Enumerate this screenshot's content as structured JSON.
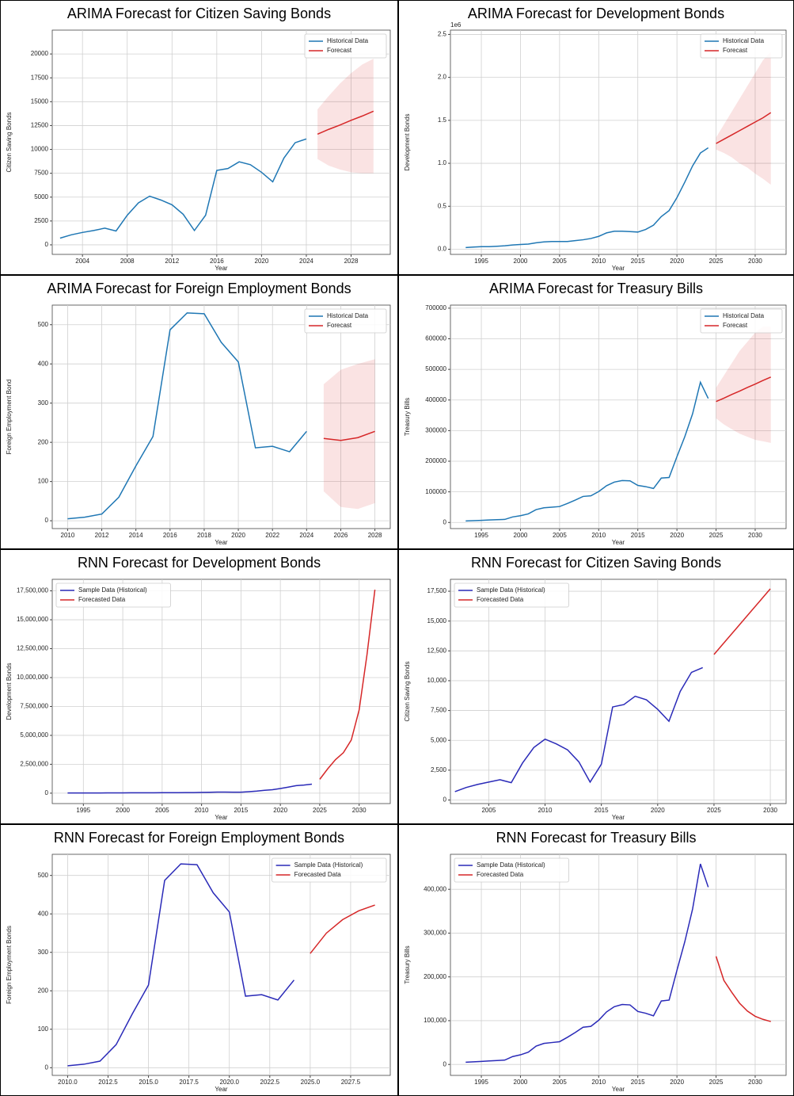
{
  "chart_data": [
    {
      "type": "line",
      "title": "ARIMA Forecast for Citizen Saving Bonds",
      "xlabel": "Year",
      "ylabel": "Citizen Saving Bonds",
      "xlim": [
        2001.3,
        2031.5
      ],
      "ylim": [
        -1000,
        22500
      ],
      "xticks": [
        2004,
        2008,
        2012,
        2016,
        2020,
        2024,
        2028
      ],
      "yticks": [
        0,
        2500,
        5000,
        7500,
        10000,
        12500,
        15000,
        17500,
        20000
      ],
      "grid": true,
      "legend": "upper right",
      "series": [
        {
          "name": "Historical Data",
          "color": "#1f77b4",
          "x": [
            2002,
            2003,
            2004,
            2005,
            2006,
            2007,
            2008,
            2009,
            2010,
            2011,
            2012,
            2013,
            2014,
            2015,
            2016,
            2017,
            2018,
            2019,
            2020,
            2021,
            2022,
            2023,
            2024
          ],
          "values": [
            700,
            1050,
            1300,
            1500,
            1750,
            1450,
            3100,
            4400,
            5100,
            4700,
            4200,
            3200,
            1500,
            3100,
            7800,
            8000,
            8700,
            8400,
            7600,
            6600,
            9100,
            10700,
            11100
          ]
        },
        {
          "name": "Forecast",
          "color": "#d62728",
          "x": [
            2025,
            2026,
            2027,
            2028,
            2029,
            2030
          ],
          "values": [
            11600,
            12100,
            12550,
            13050,
            13500,
            14000
          ],
          "ci_upper": [
            14200,
            15600,
            16900,
            18000,
            18900,
            19500
          ],
          "ci_lower": [
            9000,
            8300,
            7900,
            7600,
            7500,
            7500
          ]
        }
      ]
    },
    {
      "type": "line",
      "title": "ARIMA Forecast for Development Bonds",
      "xlabel": "Year",
      "ylabel": "Development Bonds",
      "y_offset_label": "1e6",
      "xlim": [
        1991.05,
        2033.95
      ],
      "ylim": [
        -0.06,
        2.55
      ],
      "xticks": [
        1995,
        2000,
        2005,
        2010,
        2015,
        2020,
        2025,
        2030
      ],
      "yticks": [
        {
          "value": 0,
          "label": "0.0"
        },
        0.5,
        {
          "value": 1,
          "label": "1.0"
        },
        1.5,
        {
          "value": 2,
          "label": "2.0"
        },
        2.5
      ],
      "grid": true,
      "legend": "upper right",
      "series": [
        {
          "name": "Historical Data",
          "color": "#1f77b4",
          "x": [
            1993,
            1994,
            1995,
            1996,
            1997,
            1998,
            1999,
            2000,
            2001,
            2002,
            2003,
            2004,
            2005,
            2006,
            2007,
            2008,
            2009,
            2010,
            2011,
            2012,
            2013,
            2014,
            2015,
            2016,
            2017,
            2018,
            2019,
            2020,
            2021,
            2022,
            2023,
            2024
          ],
          "values": [
            0.02,
            0.025,
            0.03,
            0.03,
            0.035,
            0.04,
            0.05,
            0.055,
            0.06,
            0.075,
            0.085,
            0.09,
            0.09,
            0.09,
            0.1,
            0.11,
            0.125,
            0.15,
            0.19,
            0.21,
            0.21,
            0.205,
            0.2,
            0.23,
            0.28,
            0.38,
            0.45,
            0.6,
            0.78,
            0.97,
            1.12,
            1.18
          ]
        },
        {
          "name": "Forecast",
          "color": "#d62728",
          "x": [
            2025,
            2026,
            2027,
            2028,
            2029,
            2030,
            2031,
            2032
          ],
          "values": [
            1.23,
            1.28,
            1.33,
            1.38,
            1.43,
            1.48,
            1.53,
            1.59
          ],
          "ci_upper": [
            1.3,
            1.45,
            1.6,
            1.75,
            1.9,
            2.05,
            2.2,
            2.3
          ],
          "ci_lower": [
            1.16,
            1.12,
            1.07,
            1.0,
            0.95,
            0.88,
            0.82,
            0.75
          ]
        }
      ]
    },
    {
      "type": "line",
      "title": "ARIMA Forecast for Foreign Employment Bonds",
      "xlabel": "Year",
      "ylabel": "Foreign Employment Bond",
      "xlim": [
        2009.1,
        2028.9
      ],
      "ylim": [
        -20,
        550
      ],
      "xticks": [
        2010,
        2012,
        2014,
        2016,
        2018,
        2020,
        2022,
        2024,
        2026,
        2028
      ],
      "yticks": [
        0,
        100,
        200,
        300,
        400,
        500
      ],
      "grid": true,
      "legend": "upper right",
      "series": [
        {
          "name": "Historical Data",
          "color": "#1f77b4",
          "x": [
            2010,
            2011,
            2012,
            2013,
            2014,
            2015,
            2016,
            2017,
            2018,
            2019,
            2020,
            2021,
            2022,
            2023,
            2024
          ],
          "values": [
            5,
            9,
            17,
            60,
            140,
            215,
            487,
            530,
            528,
            455,
            405,
            186,
            190,
            176,
            228
          ]
        },
        {
          "name": "Forecast",
          "color": "#d62728",
          "x": [
            2025,
            2026,
            2027,
            2028
          ],
          "values": [
            210,
            205,
            212,
            228
          ],
          "ci_upper": [
            348,
            385,
            400,
            412
          ],
          "ci_lower": [
            75,
            35,
            30,
            45
          ]
        }
      ]
    },
    {
      "type": "line",
      "title": "ARIMA Forecast for Treasury Bills",
      "xlabel": "Year",
      "ylabel": "Treasury Bills",
      "xlim": [
        1991.05,
        2033.95
      ],
      "ylim": [
        -20000,
        710000
      ],
      "xticks": [
        1995,
        2000,
        2005,
        2010,
        2015,
        2020,
        2025,
        2030
      ],
      "yticks": [
        0,
        100000,
        200000,
        300000,
        400000,
        500000,
        600000,
        700000
      ],
      "grid": true,
      "legend": "upper right",
      "series": [
        {
          "name": "Historical Data",
          "color": "#1f77b4",
          "x": [
            1993,
            1994,
            1995,
            1996,
            1997,
            1998,
            1999,
            2000,
            2001,
            2002,
            2003,
            2004,
            2005,
            2006,
            2007,
            2008,
            2009,
            2010,
            2011,
            2012,
            2013,
            2014,
            2015,
            2016,
            2017,
            2018,
            2019,
            2020,
            2021,
            2022,
            2023,
            2024
          ],
          "values": [
            5000,
            6000,
            7000,
            8000,
            9000,
            10000,
            18000,
            22000,
            28000,
            42000,
            48000,
            50000,
            52000,
            62000,
            73000,
            85000,
            87000,
            101000,
            120000,
            132000,
            137000,
            136000,
            121000,
            117000,
            111000,
            145000,
            147000,
            215000,
            280000,
            355000,
            458000,
            405000
          ]
        },
        {
          "name": "Forecast",
          "color": "#d62728",
          "x": [
            2025,
            2026,
            2027,
            2028,
            2029,
            2030,
            2031,
            2032
          ],
          "values": [
            395000,
            406000,
            418000,
            429000,
            441000,
            452000,
            464000,
            475000
          ],
          "ci_upper": [
            440000,
            480000,
            520000,
            560000,
            590000,
            620000,
            640000,
            640000
          ],
          "ci_lower": [
            340000,
            320000,
            305000,
            290000,
            280000,
            270000,
            265000,
            260000
          ]
        }
      ]
    },
    {
      "type": "line",
      "title": "RNN Forecast for Development Bonds",
      "xlabel": "Year",
      "ylabel": "Development Bonds",
      "xlim": [
        1991.05,
        2033.95
      ],
      "ylim": [
        -900000,
        18500000
      ],
      "xticks": [
        1995,
        2000,
        2005,
        2010,
        2015,
        2020,
        2025,
        2030
      ],
      "yticks": [
        0,
        {
          "value": 2500000,
          "label": "2,500,000"
        },
        {
          "value": 5000000,
          "label": "5,000,000"
        },
        {
          "value": 7500000,
          "label": "7,500,000"
        },
        {
          "value": 10000000,
          "label": "10,000,000"
        },
        {
          "value": 12500000,
          "label": "12,500,000"
        },
        {
          "value": 15000000,
          "label": "15,000,000"
        },
        {
          "value": 17500000,
          "label": "17,500,000"
        }
      ],
      "grid": true,
      "legend": "upper left",
      "series": [
        {
          "name": "Sample Data (Historical)",
          "color": "#2a2ab8",
          "x": [
            1993,
            1994,
            1995,
            1996,
            1997,
            1998,
            1999,
            2000,
            2001,
            2002,
            2003,
            2004,
            2005,
            2006,
            2007,
            2008,
            2009,
            2010,
            2011,
            2012,
            2013,
            2014,
            2015,
            2016,
            2017,
            2018,
            2019,
            2020,
            2021,
            2022,
            2023,
            2024
          ],
          "values": [
            15000,
            16000,
            18000,
            19000,
            20000,
            22000,
            25000,
            28000,
            30000,
            33000,
            36000,
            38000,
            40000,
            42000,
            45000,
            50000,
            55000,
            65000,
            80000,
            90000,
            90000,
            88000,
            85000,
            130000,
            180000,
            250000,
            300000,
            400000,
            520000,
            650000,
            700000,
            780000
          ]
        },
        {
          "name": "Forecasted Data",
          "color": "#d62728",
          "x": [
            2025,
            2026,
            2027,
            2028,
            2029,
            2030,
            2031,
            2032
          ],
          "values": [
            1200000,
            2100000,
            2900000,
            3500000,
            4600000,
            7200000,
            12000000,
            17600000
          ]
        }
      ]
    },
    {
      "type": "line",
      "title": "RNN Forecast for Citizen Saving Bonds",
      "xlabel": "Year",
      "ylabel": "Citizen Saving Bonds",
      "xlim": [
        2001.6,
        2031.4
      ],
      "ylim": [
        -300,
        18500
      ],
      "xticks": [
        2005,
        2010,
        2015,
        2020,
        2025,
        2030
      ],
      "yticks": [
        0,
        {
          "value": 2500,
          "label": "2,500"
        },
        {
          "value": 5000,
          "label": "5,000"
        },
        {
          "value": 7500,
          "label": "7,500"
        },
        {
          "value": 10000,
          "label": "10,000"
        },
        {
          "value": 12500,
          "label": "12,500"
        },
        {
          "value": 15000,
          "label": "15,000"
        },
        {
          "value": 17500,
          "label": "17,500"
        }
      ],
      "grid": true,
      "legend": "upper left",
      "series": [
        {
          "name": "Sample Data (Historical)",
          "color": "#2a2ab8",
          "x": [
            2002,
            2003,
            2004,
            2005,
            2006,
            2007,
            2008,
            2009,
            2010,
            2011,
            2012,
            2013,
            2014,
            2015,
            2016,
            2017,
            2018,
            2019,
            2020,
            2021,
            2022,
            2023,
            2024
          ],
          "values": [
            700,
            1050,
            1300,
            1500,
            1700,
            1450,
            3100,
            4400,
            5100,
            4700,
            4200,
            3200,
            1500,
            3000,
            7800,
            8000,
            8700,
            8400,
            7600,
            6600,
            9100,
            10700,
            11100
          ]
        },
        {
          "name": "Forecasted Data",
          "color": "#d62728",
          "x": [
            2025,
            2026,
            2027,
            2028,
            2029,
            2030
          ],
          "values": [
            12200,
            13300,
            14400,
            15500,
            16600,
            17700
          ]
        }
      ]
    },
    {
      "type": "line",
      "title": "RNN Forecast for Foreign Employment Bonds",
      "xlabel": "Year",
      "ylabel": "Foreign Employment Bonds",
      "xlim": [
        2009.05,
        2029.95
      ],
      "ylim": [
        -20,
        555
      ],
      "xticks": [
        {
          "value": 2010,
          "label": "2010.0"
        },
        2012.5,
        {
          "value": 2015,
          "label": "2015.0"
        },
        2017.5,
        {
          "value": 2020,
          "label": "2020.0"
        },
        2022.5,
        {
          "value": 2025,
          "label": "2025.0"
        },
        2027.5
      ],
      "yticks": [
        0,
        100,
        200,
        300,
        400,
        500
      ],
      "grid": true,
      "legend": "upper right",
      "series": [
        {
          "name": "Sample Data (Historical)",
          "color": "#2a2ab8",
          "x": [
            2010,
            2011,
            2012,
            2013,
            2014,
            2015,
            2016,
            2017,
            2018,
            2019,
            2020,
            2021,
            2022,
            2023,
            2024
          ],
          "values": [
            5,
            9,
            17,
            60,
            140,
            215,
            487,
            530,
            528,
            455,
            405,
            186,
            190,
            176,
            228
          ]
        },
        {
          "name": "Forecasted Data",
          "color": "#d62728",
          "x": [
            2025,
            2026,
            2027,
            2028,
            2029
          ],
          "values": [
            297,
            350,
            385,
            408,
            423
          ]
        }
      ]
    },
    {
      "type": "line",
      "title": "RNN Forecast for Treasury Bills",
      "xlabel": "Year",
      "ylabel": "Treasury Bills",
      "xlim": [
        1991.05,
        2033.95
      ],
      "ylim": [
        -25000,
        480000
      ],
      "xticks": [
        1995,
        2000,
        2005,
        2010,
        2015,
        2020,
        2025,
        2030
      ],
      "yticks": [
        0,
        {
          "value": 100000,
          "label": "100,000"
        },
        {
          "value": 200000,
          "label": "200,000"
        },
        {
          "value": 300000,
          "label": "300,000"
        },
        {
          "value": 400000,
          "label": "400,000"
        }
      ],
      "grid": true,
      "legend": "upper left",
      "series": [
        {
          "name": "Sample Data (Historical)",
          "color": "#2a2ab8",
          "x": [
            1993,
            1994,
            1995,
            1996,
            1997,
            1998,
            1999,
            2000,
            2001,
            2002,
            2003,
            2004,
            2005,
            2006,
            2007,
            2008,
            2009,
            2010,
            2011,
            2012,
            2013,
            2014,
            2015,
            2016,
            2017,
            2018,
            2019,
            2020,
            2021,
            2022,
            2023,
            2024
          ],
          "values": [
            5000,
            6000,
            7000,
            8000,
            9000,
            10000,
            18000,
            22000,
            28000,
            42000,
            48000,
            50000,
            52000,
            62000,
            73000,
            85000,
            87000,
            101000,
            120000,
            132000,
            137000,
            136000,
            121000,
            117000,
            111000,
            145000,
            147000,
            215000,
            280000,
            355000,
            458000,
            405000
          ]
        },
        {
          "name": "Forecasted Data",
          "color": "#d62728",
          "x": [
            2025,
            2026,
            2027,
            2028,
            2029,
            2030,
            2031,
            2032
          ],
          "values": [
            247000,
            192000,
            165000,
            140000,
            122000,
            110000,
            103000,
            98000
          ]
        }
      ]
    }
  ]
}
